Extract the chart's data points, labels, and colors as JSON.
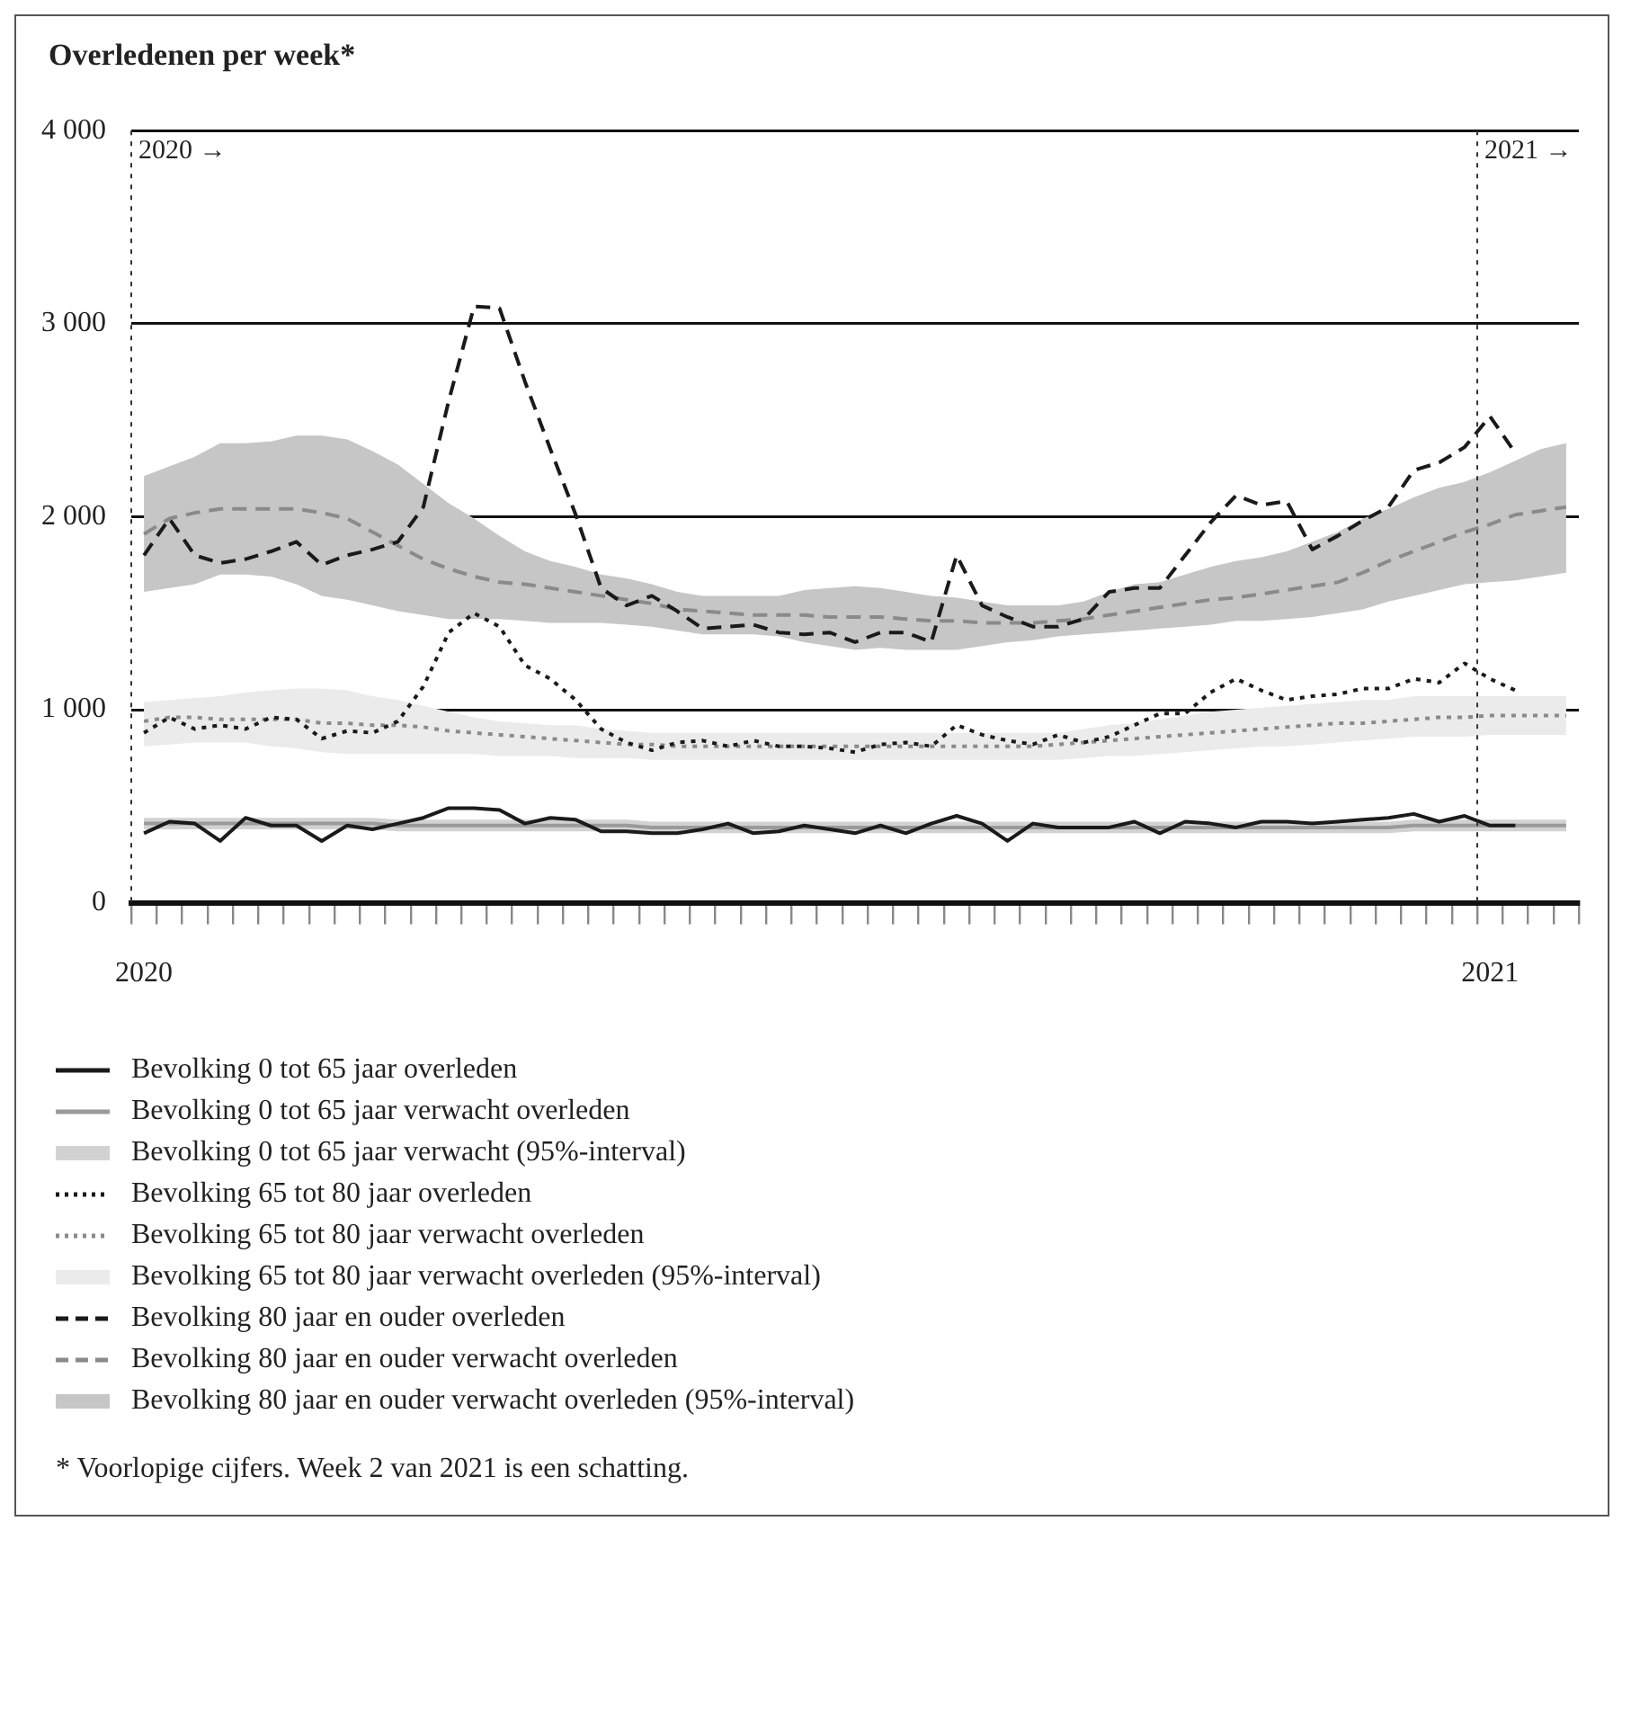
{
  "chart_data": {
    "type": "line",
    "title": "Overledenen per week*",
    "categories": [
      "2020",
      null,
      null,
      null,
      null,
      null,
      null,
      null,
      null,
      null,
      null,
      null,
      null,
      null,
      null,
      null,
      null,
      null,
      null,
      null,
      null,
      null,
      null,
      null,
      null,
      null,
      null,
      null,
      null,
      null,
      null,
      null,
      null,
      null,
      null,
      null,
      null,
      null,
      null,
      null,
      null,
      null,
      null,
      null,
      null,
      null,
      null,
      null,
      null,
      null,
      null,
      null,
      null,
      "2021",
      null,
      null,
      null
    ],
    "ylim": [
      0,
      4000
    ],
    "yticks": [
      0,
      {
        "value": 1000,
        "label": "1 000"
      },
      {
        "value": 2000,
        "label": "2 000"
      },
      {
        "value": 3000,
        "label": "3 000"
      },
      {
        "value": 4000,
        "label": "4 000"
      }
    ],
    "grid": "y",
    "legend": "bottom",
    "ref_lines": [
      {
        "axis": "x",
        "value": "2020",
        "label": "2020 →",
        "line_style": "dotted"
      },
      {
        "axis": "x",
        "value": "2021",
        "label": "2021 →",
        "line_style": "dotted"
      }
    ],
    "series": [
      {
        "name": "Bevolking 0 tot 65 jaar overleden",
        "color": "#1a1a1a",
        "line_style": "solid",
        "values": [
          360,
          420,
          410,
          320,
          440,
          400,
          400,
          320,
          400,
          380,
          410,
          440,
          490,
          490,
          480,
          410,
          440,
          430,
          370,
          370,
          360,
          360,
          380,
          410,
          360,
          370,
          400,
          380,
          360,
          400,
          360,
          410,
          450,
          410,
          320,
          410,
          390,
          390,
          390,
          420,
          360,
          420,
          410,
          390,
          420,
          420,
          410,
          420,
          430,
          440,
          460,
          420,
          450,
          400,
          400,
          null,
          null
        ]
      },
      {
        "name": "Bevolking 0 tot 65 jaar verwacht overleden",
        "color": "#9a9a9a",
        "line_style": "solid",
        "values": [
          410,
          410,
          410,
          410,
          410,
          410,
          410,
          410,
          410,
          410,
          400,
          400,
          400,
          400,
          400,
          400,
          400,
          400,
          400,
          400,
          390,
          390,
          390,
          390,
          390,
          390,
          390,
          390,
          390,
          390,
          390,
          390,
          390,
          390,
          390,
          390,
          390,
          390,
          390,
          390,
          390,
          390,
          390,
          390,
          390,
          390,
          390,
          390,
          390,
          390,
          400,
          400,
          400,
          400,
          400,
          400,
          400
        ]
      },
      {
        "name": "Bevolking 0 tot 65 jaar verwacht (95%-interval)",
        "type": "area",
        "color": "#d2d2d2",
        "values": [
          null,
          null,
          null,
          null,
          null,
          null,
          null,
          null,
          null,
          null,
          null,
          null,
          null,
          null,
          null,
          null,
          null,
          null,
          null,
          null,
          null,
          null,
          null,
          null,
          null,
          null,
          null,
          null,
          null,
          null,
          null,
          null,
          null,
          null,
          null,
          null,
          null,
          null,
          null,
          null,
          null,
          null,
          null,
          null,
          null,
          null,
          null,
          null,
          null,
          null,
          null,
          null,
          null,
          null,
          null,
          null,
          null
        ],
        "lower": [
          380,
          380,
          380,
          380,
          380,
          380,
          380,
          380,
          380,
          380,
          370,
          370,
          370,
          370,
          370,
          370,
          370,
          370,
          370,
          370,
          360,
          360,
          360,
          360,
          360,
          360,
          360,
          360,
          360,
          360,
          360,
          360,
          360,
          360,
          360,
          360,
          360,
          360,
          360,
          360,
          360,
          360,
          360,
          360,
          360,
          360,
          360,
          360,
          360,
          360,
          370,
          370,
          370,
          370,
          370,
          370,
          370
        ],
        "upper": [
          440,
          440,
          440,
          440,
          440,
          440,
          440,
          440,
          440,
          440,
          430,
          430,
          430,
          430,
          430,
          430,
          430,
          430,
          430,
          430,
          420,
          420,
          420,
          420,
          420,
          420,
          420,
          420,
          420,
          420,
          420,
          420,
          420,
          420,
          420,
          420,
          420,
          420,
          420,
          420,
          420,
          420,
          420,
          420,
          420,
          420,
          420,
          420,
          420,
          420,
          430,
          430,
          430,
          430,
          430,
          430,
          430
        ]
      },
      {
        "name": "Bevolking 65 tot 80 jaar overleden",
        "color": "#1a1a1a",
        "line_style": "dotted",
        "values": [
          880,
          960,
          900,
          920,
          900,
          960,
          950,
          850,
          890,
          880,
          940,
          1120,
          1400,
          1500,
          1430,
          1230,
          1160,
          1050,
          900,
          830,
          790,
          830,
          840,
          810,
          840,
          810,
          810,
          800,
          780,
          820,
          830,
          810,
          920,
          870,
          840,
          820,
          870,
          830,
          860,
          920,
          980,
          980,
          1090,
          1160,
          1100,
          1050,
          1070,
          1080,
          1110,
          1110,
          1160,
          1140,
          1240,
          1160,
          1100,
          null,
          null
        ]
      },
      {
        "name": "Bevolking 65 tot 80 jaar verwacht overleden",
        "color": "#8a8a8a",
        "line_style": "dotted",
        "values": [
          940,
          960,
          960,
          950,
          950,
          950,
          950,
          930,
          930,
          920,
          920,
          910,
          890,
          880,
          870,
          860,
          850,
          840,
          830,
          820,
          820,
          810,
          810,
          810,
          810,
          810,
          810,
          810,
          810,
          810,
          810,
          810,
          810,
          810,
          810,
          810,
          820,
          830,
          840,
          850,
          860,
          870,
          880,
          890,
          900,
          910,
          920,
          930,
          930,
          940,
          950,
          960,
          960,
          970,
          970,
          970,
          970
        ]
      },
      {
        "name": "Bevolking 65 tot 80 jaar verwacht overleden (95%-interval)",
        "type": "area",
        "color": "#ebebeb",
        "values": [
          null,
          null,
          null,
          null,
          null,
          null,
          null,
          null,
          null,
          null,
          null,
          null,
          null,
          null,
          null,
          null,
          null,
          null,
          null,
          null,
          null,
          null,
          null,
          null,
          null,
          null,
          null,
          null,
          null,
          null,
          null,
          null,
          null,
          null,
          null,
          null,
          null,
          null,
          null,
          null,
          null,
          null,
          null,
          null,
          null,
          null,
          null,
          null,
          null,
          null,
          null,
          null,
          null,
          null,
          null,
          null,
          null
        ],
        "lower": [
          810,
          820,
          830,
          830,
          830,
          810,
          800,
          780,
          770,
          770,
          770,
          770,
          770,
          770,
          760,
          760,
          760,
          750,
          750,
          750,
          740,
          740,
          740,
          740,
          740,
          740,
          740,
          740,
          740,
          740,
          740,
          740,
          740,
          740,
          740,
          740,
          740,
          750,
          760,
          760,
          770,
          780,
          790,
          800,
          810,
          810,
          820,
          830,
          840,
          850,
          860,
          860,
          860,
          870,
          870,
          870,
          870
        ],
        "upper": [
          1040,
          1050,
          1060,
          1070,
          1090,
          1100,
          1110,
          1110,
          1100,
          1070,
          1050,
          1020,
          990,
          960,
          940,
          930,
          920,
          920,
          900,
          890,
          880,
          880,
          880,
          880,
          880,
          880,
          880,
          880,
          880,
          880,
          880,
          880,
          880,
          880,
          880,
          880,
          880,
          900,
          920,
          930,
          950,
          970,
          990,
          1000,
          1010,
          1020,
          1030,
          1040,
          1050,
          1050,
          1070,
          1070,
          1070,
          1070,
          1070,
          1070,
          1070
        ]
      },
      {
        "name": "Bevolking 80 jaar en ouder overleden",
        "color": "#1a1a1a",
        "line_style": "dashed",
        "values": [
          1800,
          1990,
          1800,
          1760,
          1780,
          1820,
          1870,
          1750,
          1800,
          1830,
          1870,
          2050,
          2600,
          3090,
          3080,
          2700,
          2350,
          2010,
          1630,
          1540,
          1590,
          1510,
          1420,
          1430,
          1440,
          1400,
          1390,
          1400,
          1350,
          1400,
          1400,
          1350,
          1800,
          1540,
          1480,
          1430,
          1430,
          1470,
          1610,
          1630,
          1630,
          1800,
          1970,
          2110,
          2060,
          2080,
          1830,
          1900,
          1980,
          2050,
          2240,
          2280,
          2360,
          2520,
          2330,
          null,
          null
        ]
      },
      {
        "name": "Bevolking 80 jaar en ouder verwacht overleden",
        "color": "#8a8a8a",
        "line_style": "dashed",
        "values": [
          1910,
          1990,
          2020,
          2040,
          2040,
          2040,
          2040,
          2020,
          1990,
          1920,
          1850,
          1780,
          1730,
          1690,
          1660,
          1650,
          1630,
          1610,
          1590,
          1570,
          1550,
          1520,
          1510,
          1500,
          1490,
          1490,
          1490,
          1480,
          1480,
          1480,
          1470,
          1460,
          1460,
          1450,
          1450,
          1450,
          1460,
          1470,
          1490,
          1510,
          1530,
          1550,
          1570,
          1580,
          1600,
          1620,
          1640,
          1660,
          1710,
          1770,
          1820,
          1870,
          1920,
          1960,
          2010,
          2030,
          2050
        ]
      },
      {
        "name": "Bevolking 80 jaar en ouder verwacht overleden (95%-interval)",
        "type": "area",
        "color": "#c6c6c6",
        "values": [
          null,
          null,
          null,
          null,
          null,
          null,
          null,
          null,
          null,
          null,
          null,
          null,
          null,
          null,
          null,
          null,
          null,
          null,
          null,
          null,
          null,
          null,
          null,
          null,
          null,
          null,
          null,
          null,
          null,
          null,
          null,
          null,
          null,
          null,
          null,
          null,
          null,
          null,
          null,
          null,
          null,
          null,
          null,
          null,
          null,
          null,
          null,
          null,
          null,
          null,
          null,
          null,
          null,
          null,
          null,
          null,
          null
        ],
        "lower": [
          1610,
          1630,
          1650,
          1700,
          1700,
          1690,
          1650,
          1590,
          1570,
          1540,
          1510,
          1490,
          1470,
          1470,
          1470,
          1460,
          1450,
          1450,
          1450,
          1440,
          1430,
          1410,
          1390,
          1390,
          1390,
          1380,
          1350,
          1330,
          1310,
          1320,
          1310,
          1310,
          1310,
          1330,
          1350,
          1360,
          1380,
          1390,
          1400,
          1410,
          1420,
          1430,
          1440,
          1460,
          1460,
          1470,
          1480,
          1500,
          1520,
          1560,
          1590,
          1620,
          1650,
          1660,
          1670,
          1690,
          1710
        ],
        "upper": [
          2210,
          2260,
          2310,
          2380,
          2380,
          2390,
          2420,
          2420,
          2400,
          2340,
          2270,
          2170,
          2070,
          1990,
          1900,
          1820,
          1770,
          1740,
          1700,
          1680,
          1650,
          1610,
          1590,
          1590,
          1590,
          1590,
          1620,
          1630,
          1640,
          1630,
          1610,
          1590,
          1580,
          1560,
          1540,
          1540,
          1540,
          1560,
          1610,
          1650,
          1660,
          1700,
          1740,
          1770,
          1790,
          1820,
          1870,
          1920,
          1990,
          2040,
          2100,
          2150,
          2180,
          2230,
          2290,
          2350,
          2380
        ]
      }
    ],
    "annotations": [
      "* Voorlopige cijfers. Week 2 van 2021 is een schatting."
    ]
  }
}
